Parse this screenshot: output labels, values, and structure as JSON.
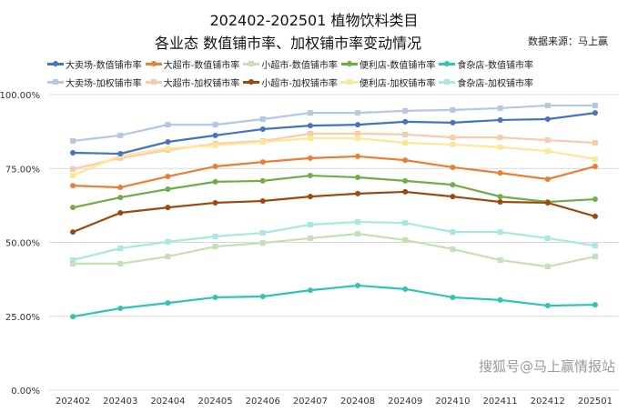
{
  "chart_data": {
    "type": "line",
    "title": "202402-202501 植物饮料类目",
    "subtitle": "各业态 数值铺市率、加权铺市率变动情况",
    "source": "数据来源：马上赢",
    "watermark": "搜狐号@马上赢情报站",
    "categories": [
      "202402",
      "202403",
      "202404",
      "202405",
      "202406",
      "202407",
      "202408",
      "202409",
      "202410",
      "202411",
      "202412",
      "202501"
    ],
    "yticks": [
      "0.00%",
      "25.00%",
      "50.00%",
      "75.00%",
      "100.00%"
    ],
    "ylim": [
      0,
      100
    ],
    "grid": true,
    "legend_position": "top",
    "series": [
      {
        "name": "大卖场-数值铺市率",
        "color": "#4472C4",
        "marker": "circle",
        "values": [
          80.3,
          80.0,
          84.0,
          86.2,
          88.3,
          89.5,
          89.8,
          90.8,
          90.5,
          91.4,
          91.7,
          93.8
        ]
      },
      {
        "name": "大超市-数值铺市率",
        "color": "#ED7D31",
        "marker": "circle",
        "values": [
          69.2,
          68.6,
          72.3,
          75.7,
          77.2,
          78.5,
          79.1,
          77.8,
          75.4,
          73.5,
          71.4,
          75.7
        ]
      },
      {
        "name": "小超市-数值铺市率",
        "color": "#C5E0B4",
        "marker": "square",
        "values": [
          42.8,
          42.8,
          45.2,
          48.6,
          49.8,
          51.4,
          52.9,
          50.8,
          47.7,
          44.0,
          41.8,
          45.2
        ]
      },
      {
        "name": "便利店-数值铺市率",
        "color": "#70AD47",
        "marker": "circle",
        "values": [
          61.8,
          65.2,
          68.0,
          70.5,
          70.8,
          72.6,
          72.0,
          70.8,
          69.5,
          65.5,
          63.7,
          64.6
        ]
      },
      {
        "name": "食杂店-数值铺市率",
        "color": "#2EC4B6",
        "marker": "circle",
        "values": [
          24.9,
          27.7,
          29.5,
          31.4,
          31.7,
          33.8,
          35.4,
          34.2,
          31.4,
          30.5,
          28.6,
          28.9
        ]
      },
      {
        "name": "大卖场-加权铺市率",
        "color": "#B4C7E7",
        "marker": "square",
        "values": [
          84.3,
          86.2,
          89.8,
          89.8,
          91.7,
          93.8,
          93.8,
          94.5,
          94.8,
          95.4,
          96.3,
          96.3
        ]
      },
      {
        "name": "大超市-加权铺市率",
        "color": "#F8CBAD",
        "marker": "square",
        "values": [
          74.8,
          78.5,
          81.2,
          83.4,
          84.3,
          86.8,
          86.8,
          86.5,
          85.5,
          85.5,
          84.6,
          83.7
        ]
      },
      {
        "name": "小超市-加权铺市率",
        "color": "#9E480E",
        "marker": "circle",
        "values": [
          53.5,
          60.0,
          61.8,
          63.4,
          64.0,
          65.5,
          66.5,
          67.1,
          65.5,
          63.7,
          63.4,
          58.8
        ]
      },
      {
        "name": "便利店-加权铺市率",
        "color": "#FFE699",
        "marker": "square",
        "values": [
          72.6,
          79.4,
          81.8,
          82.8,
          84.0,
          85.2,
          85.2,
          83.7,
          83.1,
          82.2,
          80.9,
          78.2
        ]
      },
      {
        "name": "食杂店-加权铺市率",
        "color": "#A9E8E0",
        "marker": "square",
        "values": [
          44.0,
          48.0,
          50.2,
          52.0,
          53.2,
          56.0,
          56.9,
          56.6,
          53.5,
          53.5,
          51.4,
          48.9
        ]
      }
    ]
  }
}
